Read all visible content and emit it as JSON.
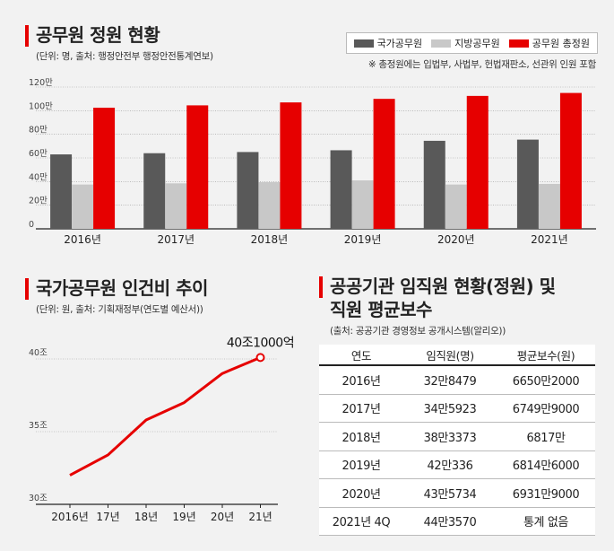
{
  "colors": {
    "national": "#595959",
    "local": "#c8c8c8",
    "total": "#e60000",
    "accent": "#e60000"
  },
  "chart1": {
    "title": "공무원 정원 현황",
    "subtitle": "(단위: 명, 출처: 행정안전부 행정안전통계연보)",
    "note": "※ 총정원에는 입법부, 사법부, 헌법재판소, 선관위 인원 포함",
    "chart_data": {
      "type": "bar",
      "categories": [
        "2016년",
        "2017년",
        "2018년",
        "2019년",
        "2020년",
        "2021년"
      ],
      "series": [
        {
          "name": "국가공무원",
          "values": [
            630000,
            640000,
            650000,
            665000,
            745000,
            755000
          ]
        },
        {
          "name": "지방공무원",
          "values": [
            375000,
            385000,
            395000,
            410000,
            375000,
            380000
          ]
        },
        {
          "name": "공무원 총정원",
          "values": [
            1025000,
            1045000,
            1070000,
            1100000,
            1125000,
            1150000
          ]
        }
      ],
      "yticks": [
        "0",
        "20만",
        "40만",
        "60만",
        "80만",
        "100만",
        "120만"
      ],
      "ylim": [
        0,
        1200000
      ],
      "grid": true,
      "legend": "top-right"
    }
  },
  "chart2": {
    "title": "국가공무원 인건비 추이",
    "subtitle": "(단위: 원, 출처: 기획재정부(연도별 예산서))",
    "annotation": "40조1000억",
    "chart_data": {
      "type": "line",
      "categories": [
        "2016년",
        "17년",
        "18년",
        "19년",
        "20년",
        "21년"
      ],
      "values": [
        32.0,
        33.4,
        35.8,
        37.0,
        39.0,
        40.1
      ],
      "yticks": [
        "30조",
        "35조",
        "40조"
      ],
      "ylim": [
        30,
        40
      ],
      "grid": true
    }
  },
  "table": {
    "title_line1": "공공기관 임직원 현황(정원) 및",
    "title_line2": "직원 평균보수",
    "subtitle": "(출처: 공공기관 경영정보 공개시스템(알리오))",
    "headers": [
      "연도",
      "임직원(명)",
      "평균보수(원)"
    ],
    "rows": [
      [
        "2016년",
        "32만8479",
        "6650만2000"
      ],
      [
        "2017년",
        "34만5923",
        "6749만9000"
      ],
      [
        "2018년",
        "38만3373",
        "6817만"
      ],
      [
        "2019년",
        "42만336",
        "6814만6000"
      ],
      [
        "2020년",
        "43만5734",
        "6931만9000"
      ],
      [
        "2021년 4Q",
        "44만3570",
        "통계 없음"
      ]
    ]
  }
}
